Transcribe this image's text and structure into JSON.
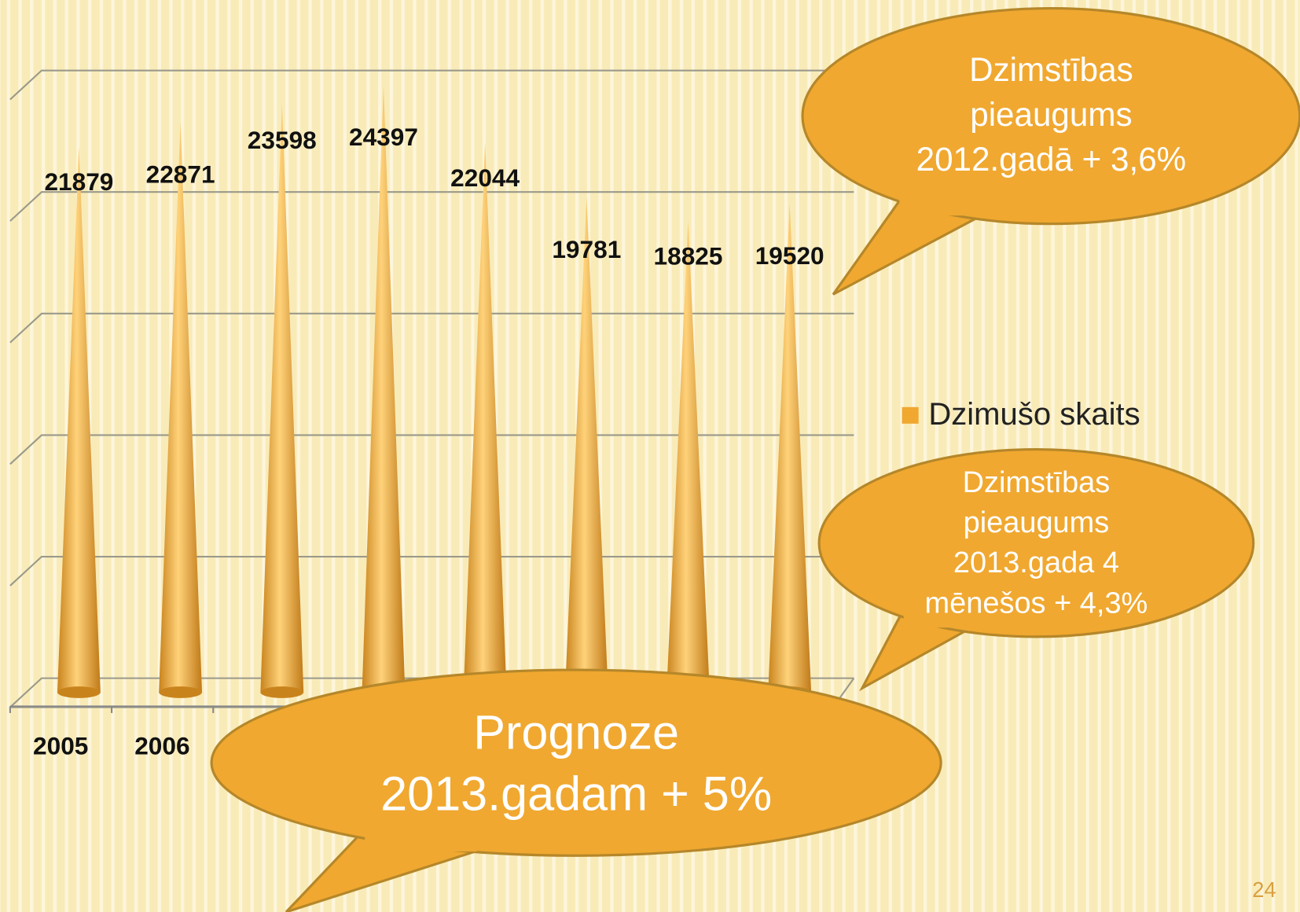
{
  "chart_data": {
    "type": "cone",
    "categories": [
      "2005",
      "2006",
      null,
      null,
      null,
      null,
      null,
      null
    ],
    "series": [
      {
        "name": "Dzimušo skaits",
        "color": "#f0a830",
        "values": [
          21879,
          22871,
          23598,
          24397,
          22044,
          19781,
          18825,
          19520
        ]
      }
    ],
    "ylim": [
      0,
      25000
    ],
    "yticks": [
      0,
      5000,
      10000,
      15000,
      20000,
      25000
    ],
    "grid": true,
    "legend": "right",
    "annotations": [
      {
        "lines": [
          "Dzimstības",
          "pieaugums",
          "2012.gadā + 3,6%"
        ]
      },
      {
        "lines": [
          "Dzimstības",
          "pieaugums",
          "2013.gada 4",
          "mēnešos  + 4,3%"
        ]
      },
      {
        "lines": [
          "Prognoze",
          "2013.gadam + 5%"
        ]
      }
    ]
  },
  "page_number": "24"
}
